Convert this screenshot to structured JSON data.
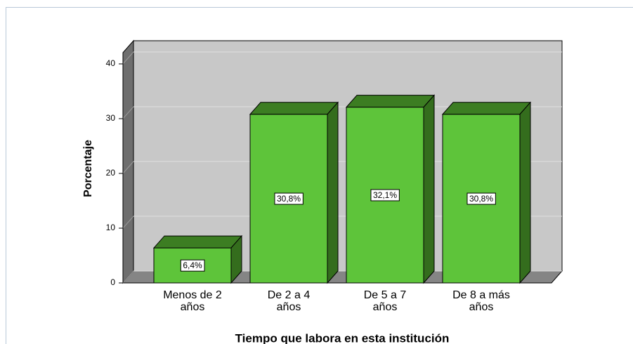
{
  "chart_data": {
    "type": "bar3d",
    "y_label": "Porcentaje",
    "x_label": "Tiempo que labora en esta institución",
    "categories": [
      "Menos de 2 años",
      "De 2 a 4 años",
      "De 5 a 7 años",
      "De 8 a más años"
    ],
    "values": [
      6.4,
      30.8,
      32.1,
      30.8
    ],
    "value_labels": [
      "6,4%",
      "30,8%",
      "32,1%",
      "30,8%"
    ],
    "color": "#5ec43a",
    "ylim": [
      0,
      40
    ],
    "yticks": [
      0,
      10,
      20,
      30,
      40
    ],
    "grid": true
  }
}
